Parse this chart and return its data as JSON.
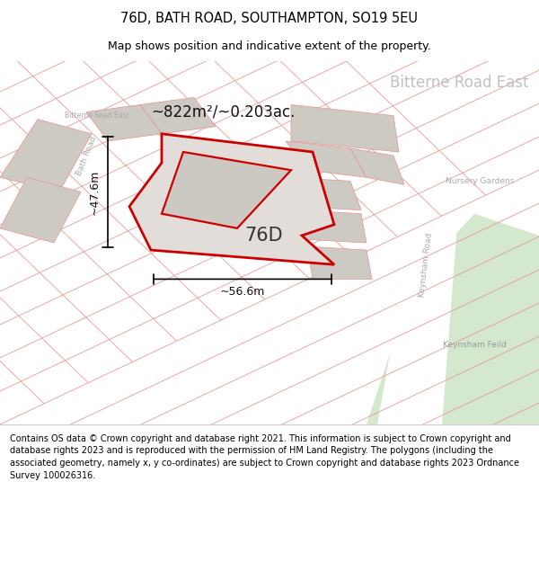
{
  "title": "76D, BATH ROAD, SOUTHAMPTON, SO19 5EU",
  "subtitle": "Map shows position and indicative extent of the property.",
  "footer": "Contains OS data © Crown copyright and database right 2021. This information is subject to Crown copyright and database rights 2023 and is reproduced with the permission of HM Land Registry. The polygons (including the associated geometry, namely x, y co-ordinates) are subject to Crown copyright and database rights 2023 Ordnance Survey 100026316.",
  "area_label": "~822m²/~0.203ac.",
  "plot_label": "76D",
  "width_label": "~56.6m",
  "height_label": "~47.6m",
  "bg_color": "#eeebe4",
  "white": "#ffffff",
  "plot_fill": "#e2ddd8",
  "plot_outline": "#cc0000",
  "grey_block": "#cdcac4",
  "green_fill": "#d4e8ce",
  "label_grey": "#b0b0b0",
  "label_dark": "#888888",
  "line_red": "#e89090",
  "road_stripe": "#ffffff"
}
